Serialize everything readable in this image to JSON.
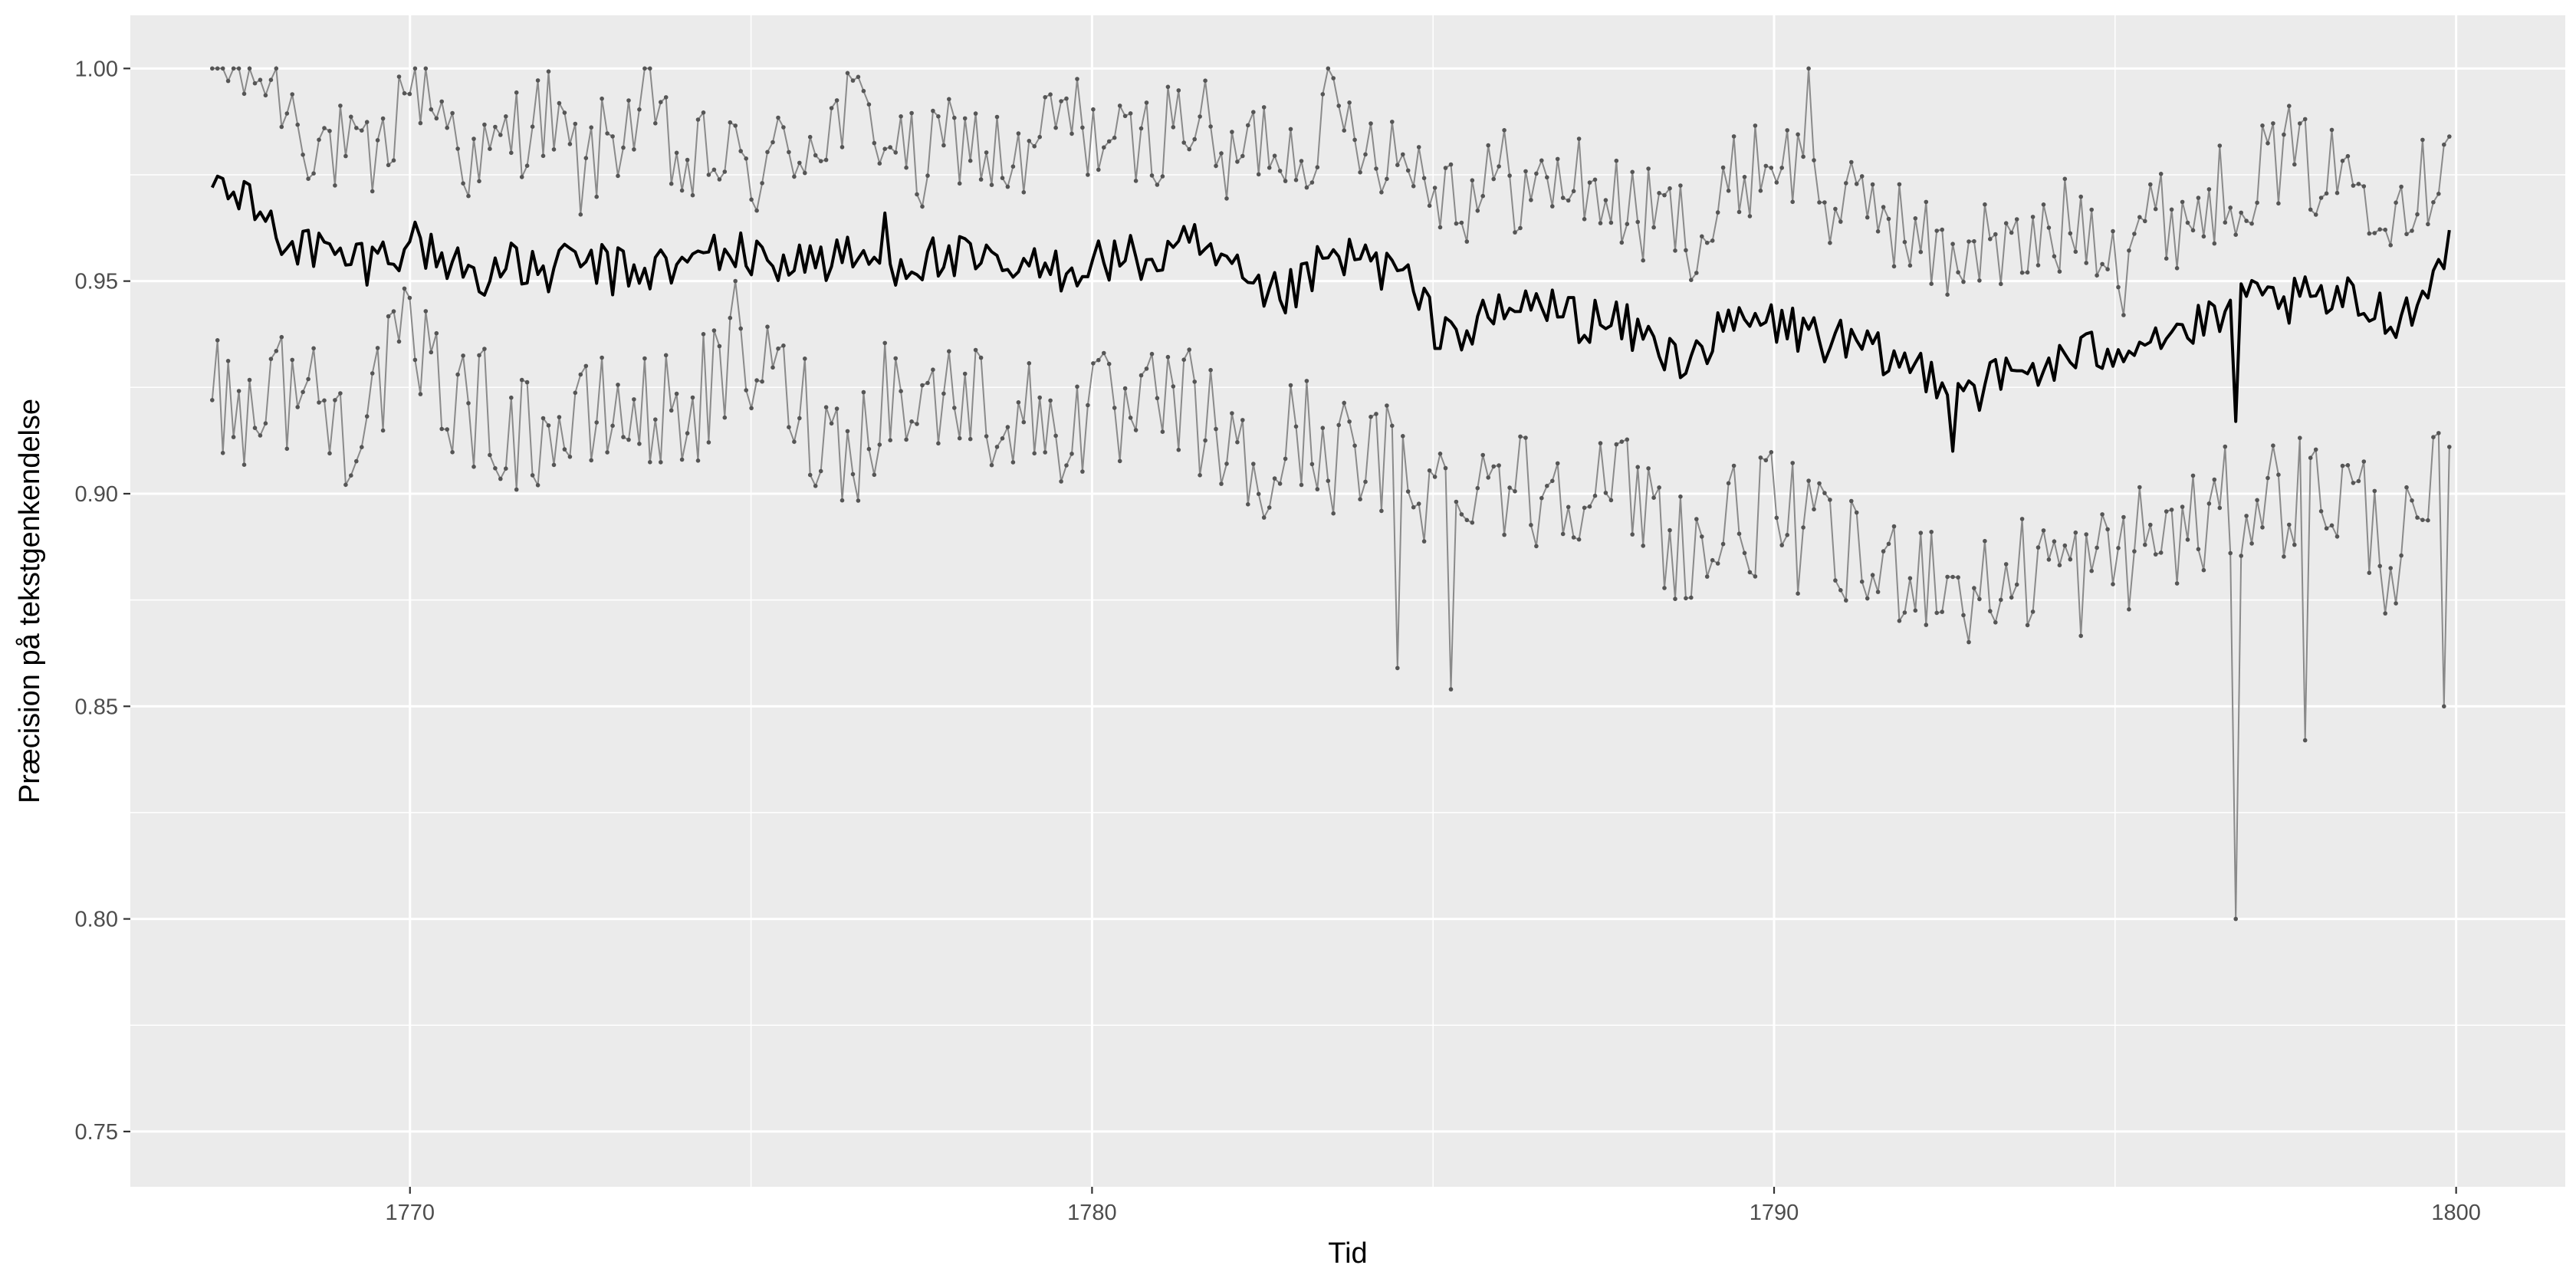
{
  "chart_data": {
    "type": "line",
    "title": "",
    "xlabel": "Tid",
    "ylabel": "Præcision på tekstgenkendelse",
    "xlim": [
      1765.9,
      1801.6
    ],
    "ylim": [
      0.737,
      1.0125
    ],
    "x_ticks": [
      1770,
      1780,
      1790,
      1800
    ],
    "x_tick_labels": [
      "1770",
      "1780",
      "1790",
      "1800"
    ],
    "y_ticks": [
      0.75,
      0.8,
      0.85,
      0.9,
      0.95,
      1.0
    ],
    "y_tick_labels": [
      "0.75",
      "0.80",
      "0.85",
      "0.90",
      "0.95",
      "1.00"
    ],
    "x_start": 1767.1,
    "x_end": 1799.9,
    "grid": true,
    "legend": "none",
    "colors": {
      "panel": "#ebebeb",
      "grid": "#ffffff",
      "mean": "#000000",
      "bounds": "#8a8a8a",
      "points": "#555555"
    },
    "series": [
      {
        "style": "line-with-points",
        "anchors": [
          [
            1767.1,
            1.0
          ],
          [
            1767.5,
            1.0
          ],
          [
            1768.0,
            0.998
          ],
          [
            1768.5,
            0.985
          ],
          [
            1769.0,
            0.98
          ],
          [
            1769.5,
            0.975
          ],
          [
            1770.0,
            1.0
          ],
          [
            1770.5,
            0.99
          ],
          [
            1771.0,
            0.975
          ],
          [
            1771.5,
            0.985
          ],
          [
            1772.0,
            0.99
          ],
          [
            1772.5,
            0.975
          ],
          [
            1773.0,
            0.985
          ],
          [
            1773.5,
            0.99
          ],
          [
            1774.0,
            0.975
          ],
          [
            1774.5,
            0.98
          ],
          [
            1775.0,
            0.975
          ],
          [
            1775.5,
            0.98
          ],
          [
            1776.0,
            0.985
          ],
          [
            1776.5,
            0.99
          ],
          [
            1777.0,
            0.985
          ],
          [
            1777.5,
            0.975
          ],
          [
            1778.0,
            0.985
          ],
          [
            1778.5,
            0.98
          ],
          [
            1779.0,
            0.975
          ],
          [
            1779.5,
            0.99
          ],
          [
            1780.0,
            0.985
          ],
          [
            1780.5,
            0.98
          ],
          [
            1781.0,
            0.985
          ],
          [
            1781.5,
            0.99
          ],
          [
            1782.0,
            0.975
          ],
          [
            1782.5,
            0.985
          ],
          [
            1783.0,
            0.98
          ],
          [
            1783.5,
            0.99
          ],
          [
            1784.0,
            0.985
          ],
          [
            1784.5,
            0.98
          ],
          [
            1785.0,
            0.975
          ],
          [
            1785.5,
            0.97
          ],
          [
            1786.0,
            0.975
          ],
          [
            1786.5,
            0.97
          ],
          [
            1787.0,
            0.975
          ],
          [
            1787.5,
            0.97
          ],
          [
            1788.0,
            0.965
          ],
          [
            1788.5,
            0.965
          ],
          [
            1789.0,
            0.96
          ],
          [
            1789.5,
            0.975
          ],
          [
            1790.0,
            0.98
          ],
          [
            1790.5,
            0.975
          ],
          [
            1791.0,
            0.965
          ],
          [
            1791.5,
            0.97
          ],
          [
            1792.0,
            0.96
          ],
          [
            1792.5,
            0.955
          ],
          [
            1793.0,
            0.96
          ],
          [
            1793.5,
            0.955
          ],
          [
            1794.0,
            0.96
          ],
          [
            1794.5,
            0.965
          ],
          [
            1795.0,
            0.96
          ],
          [
            1795.5,
            0.965
          ],
          [
            1796.0,
            0.965
          ],
          [
            1796.5,
            0.97
          ],
          [
            1797.0,
            0.975
          ],
          [
            1797.5,
            0.98
          ],
          [
            1798.0,
            0.975
          ],
          [
            1798.5,
            0.975
          ],
          [
            1799.0,
            0.97
          ],
          [
            1799.5,
            0.972
          ],
          [
            1799.9,
            0.984
          ]
        ],
        "extremes": [
          [
            1790.5,
            1.0
          ],
          [
            1785.7,
            0.97
          ],
          [
            1795.1,
            0.942
          ]
        ]
      },
      {
        "style": "line",
        "anchors": [
          [
            1767.1,
            0.972
          ],
          [
            1767.5,
            0.97
          ],
          [
            1768.0,
            0.962
          ],
          [
            1768.5,
            0.958
          ],
          [
            1769.0,
            0.955
          ],
          [
            1769.5,
            0.955
          ],
          [
            1770.0,
            0.96
          ],
          [
            1770.5,
            0.955
          ],
          [
            1771.0,
            0.952
          ],
          [
            1771.5,
            0.953
          ],
          [
            1772.0,
            0.952
          ],
          [
            1772.5,
            0.955
          ],
          [
            1773.0,
            0.952
          ],
          [
            1773.5,
            0.953
          ],
          [
            1774.0,
            0.953
          ],
          [
            1774.5,
            0.958
          ],
          [
            1775.0,
            0.955
          ],
          [
            1775.5,
            0.955
          ],
          [
            1776.0,
            0.955
          ],
          [
            1776.5,
            0.955
          ],
          [
            1777.0,
            0.955
          ],
          [
            1777.5,
            0.955
          ],
          [
            1778.0,
            0.955
          ],
          [
            1778.5,
            0.953
          ],
          [
            1779.0,
            0.952
          ],
          [
            1779.5,
            0.953
          ],
          [
            1780.0,
            0.955
          ],
          [
            1780.5,
            0.955
          ],
          [
            1781.0,
            0.955
          ],
          [
            1781.5,
            0.958
          ],
          [
            1782.0,
            0.952
          ],
          [
            1782.5,
            0.945
          ],
          [
            1783.0,
            0.948
          ],
          [
            1783.5,
            0.955
          ],
          [
            1784.0,
            0.955
          ],
          [
            1784.5,
            0.952
          ],
          [
            1785.0,
            0.94
          ],
          [
            1785.5,
            0.938
          ],
          [
            1786.0,
            0.942
          ],
          [
            1786.5,
            0.945
          ],
          [
            1787.0,
            0.942
          ],
          [
            1787.5,
            0.94
          ],
          [
            1788.0,
            0.938
          ],
          [
            1788.5,
            0.932
          ],
          [
            1789.0,
            0.935
          ],
          [
            1789.5,
            0.94
          ],
          [
            1790.0,
            0.94
          ],
          [
            1790.5,
            0.938
          ],
          [
            1791.0,
            0.935
          ],
          [
            1791.5,
            0.932
          ],
          [
            1792.0,
            0.93
          ],
          [
            1792.5,
            0.928
          ],
          [
            1793.0,
            0.925
          ],
          [
            1793.5,
            0.928
          ],
          [
            1794.0,
            0.93
          ],
          [
            1794.5,
            0.932
          ],
          [
            1795.0,
            0.935
          ],
          [
            1795.5,
            0.938
          ],
          [
            1796.0,
            0.938
          ],
          [
            1796.5,
            0.94
          ],
          [
            1797.0,
            0.945
          ],
          [
            1797.5,
            0.945
          ],
          [
            1798.0,
            0.945
          ],
          [
            1798.5,
            0.945
          ],
          [
            1799.0,
            0.942
          ],
          [
            1799.5,
            0.945
          ],
          [
            1799.9,
            0.962
          ]
        ],
        "extremes": [
          [
            1792.6,
            0.91
          ],
          [
            1796.8,
            0.917
          ],
          [
            1777.0,
            0.966
          ]
        ]
      },
      {
        "style": "line-with-points",
        "anchors": [
          [
            1767.1,
            0.922
          ],
          [
            1767.5,
            0.92
          ],
          [
            1768.0,
            0.925
          ],
          [
            1768.5,
            0.925
          ],
          [
            1769.0,
            0.915
          ],
          [
            1769.5,
            0.925
          ],
          [
            1770.0,
            0.935
          ],
          [
            1770.5,
            0.925
          ],
          [
            1771.0,
            0.92
          ],
          [
            1771.5,
            0.915
          ],
          [
            1772.0,
            0.915
          ],
          [
            1772.5,
            0.915
          ],
          [
            1773.0,
            0.92
          ],
          [
            1773.5,
            0.918
          ],
          [
            1774.0,
            0.92
          ],
          [
            1774.5,
            0.925
          ],
          [
            1775.0,
            0.93
          ],
          [
            1775.5,
            0.925
          ],
          [
            1776.0,
            0.915
          ],
          [
            1776.5,
            0.91
          ],
          [
            1777.0,
            0.925
          ],
          [
            1777.5,
            0.92
          ],
          [
            1778.0,
            0.925
          ],
          [
            1778.5,
            0.92
          ],
          [
            1779.0,
            0.918
          ],
          [
            1779.5,
            0.915
          ],
          [
            1780.0,
            0.92
          ],
          [
            1780.5,
            0.915
          ],
          [
            1781.0,
            0.92
          ],
          [
            1781.5,
            0.92
          ],
          [
            1782.0,
            0.91
          ],
          [
            1782.5,
            0.9
          ],
          [
            1783.0,
            0.915
          ],
          [
            1783.5,
            0.91
          ],
          [
            1784.0,
            0.905
          ],
          [
            1784.5,
            0.91
          ],
          [
            1785.0,
            0.9
          ],
          [
            1785.5,
            0.905
          ],
          [
            1786.0,
            0.905
          ],
          [
            1786.5,
            0.9
          ],
          [
            1787.0,
            0.905
          ],
          [
            1787.5,
            0.9
          ],
          [
            1788.0,
            0.9
          ],
          [
            1788.5,
            0.89
          ],
          [
            1789.0,
            0.885
          ],
          [
            1789.5,
            0.895
          ],
          [
            1790.0,
            0.895
          ],
          [
            1790.5,
            0.89
          ],
          [
            1791.0,
            0.885
          ],
          [
            1791.5,
            0.88
          ],
          [
            1792.0,
            0.885
          ],
          [
            1792.5,
            0.88
          ],
          [
            1793.0,
            0.875
          ],
          [
            1793.5,
            0.88
          ],
          [
            1794.0,
            0.885
          ],
          [
            1794.5,
            0.88
          ],
          [
            1795.0,
            0.885
          ],
          [
            1795.5,
            0.89
          ],
          [
            1796.0,
            0.89
          ],
          [
            1796.5,
            0.895
          ],
          [
            1797.0,
            0.9
          ],
          [
            1797.5,
            0.9
          ],
          [
            1798.0,
            0.9
          ],
          [
            1798.5,
            0.9
          ],
          [
            1799.0,
            0.885
          ],
          [
            1799.5,
            0.89
          ],
          [
            1799.9,
            0.911
          ]
        ],
        "extremes": [
          [
            1796.8,
            0.8
          ],
          [
            1797.8,
            0.842
          ],
          [
            1785.3,
            0.854
          ],
          [
            1784.5,
            0.859
          ],
          [
            1799.8,
            0.85
          ],
          [
            1774.8,
            0.95
          ]
        ]
      }
    ]
  }
}
